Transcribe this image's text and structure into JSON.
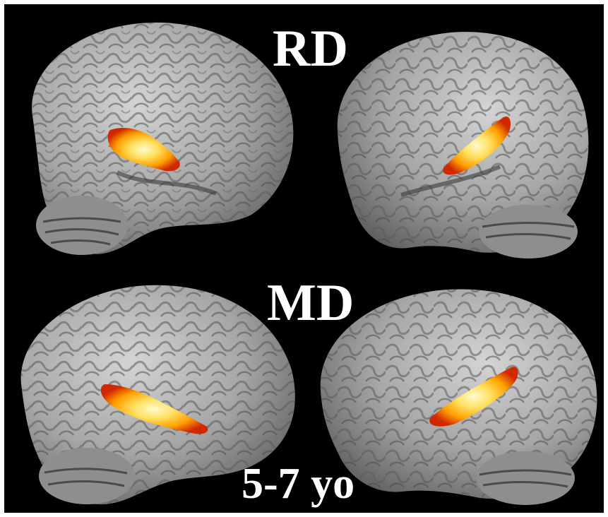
{
  "figure": {
    "labels": {
      "top_group": "RD",
      "bottom_group": "MD",
      "age": "5-7 yo"
    },
    "colors": {
      "background": "#000000",
      "frame": "#ffffff",
      "brain_surface": "#a8a8a8",
      "activation_core": "#fffbd0",
      "activation_mid": "#ffb000",
      "activation_edge": "#e03000"
    }
  }
}
